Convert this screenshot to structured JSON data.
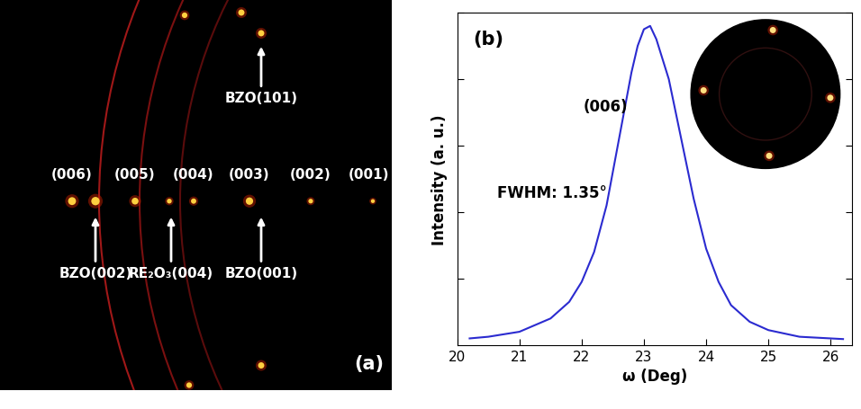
{
  "diagram": {
    "label": "(a)",
    "spot_labels": [
      "(006)",
      "(005)",
      "(004)",
      "(003)",
      "(002)",
      "(001)"
    ],
    "arrow_labels": [
      "BZO(101)",
      "BZO(002)",
      "RE₂O₃(004)",
      "BZO(001)"
    ]
  },
  "chart_data": {
    "type": "line",
    "panel_label": "(b)",
    "x_label": "ω (Deg)",
    "y_label": "Intensity (a. u.)",
    "annotations": [
      "(006)",
      "FWHM: 1.35°"
    ],
    "x": [
      20.2,
      20.5,
      21.0,
      21.5,
      21.8,
      22.0,
      22.2,
      22.4,
      22.6,
      22.8,
      22.9,
      23.0,
      23.1,
      23.2,
      23.4,
      23.6,
      23.8,
      24.0,
      24.2,
      24.4,
      24.7,
      25.0,
      25.5,
      26.0,
      26.2
    ],
    "values": [
      0.02,
      0.025,
      0.04,
      0.08,
      0.13,
      0.19,
      0.28,
      0.42,
      0.62,
      0.82,
      0.9,
      0.95,
      0.96,
      0.92,
      0.8,
      0.62,
      0.44,
      0.29,
      0.19,
      0.12,
      0.07,
      0.045,
      0.025,
      0.02,
      0.018
    ],
    "color": "#2b2bd0",
    "xlim": [
      20,
      26.35
    ],
    "xticks": [
      20,
      21,
      22,
      23,
      24,
      25,
      26
    ],
    "ylim": [
      0,
      1.0
    ],
    "yticks": [
      0.2,
      0.4,
      0.6,
      0.8,
      1.0
    ],
    "tick_labels": "x"
  }
}
